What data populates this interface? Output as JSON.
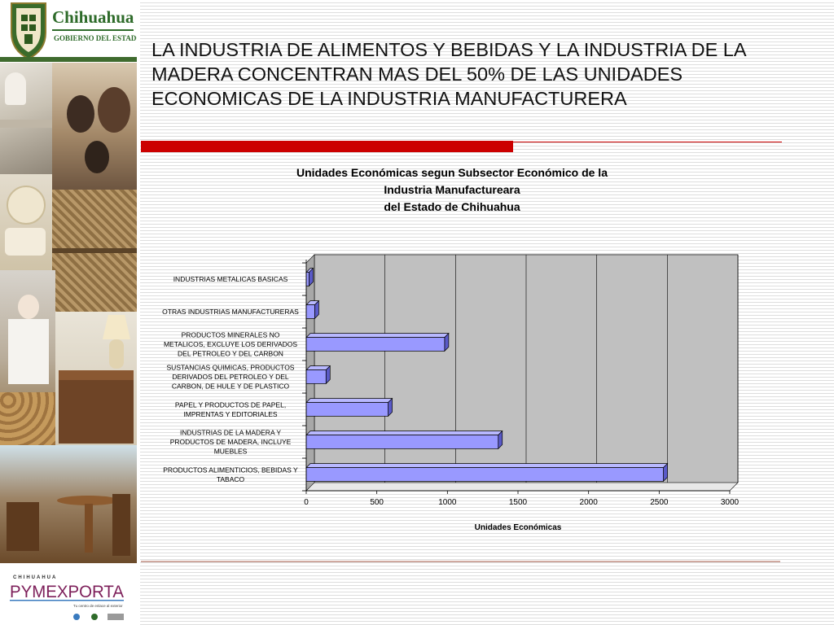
{
  "header": {
    "logo_word": "Chihuahua",
    "logo_sub": "GOBIERNO DEL ESTADO"
  },
  "slide_title": "LA INDUSTRIA DE ALIMENTOS Y BEBIDAS Y LA INDUSTRIA DE LA MADERA CONCENTRAN MAS DEL 50% DE LAS UNIDADES ECONOMICAS DE LA INDUSTRIA MANUFACTURERA",
  "footer_logo": {
    "top_word": "CHIHUAHUA",
    "brand": "PYMEXPORTA",
    "tagline": "Tu centro de enlace al exterior"
  },
  "colors": {
    "accent_red": "#cc0000",
    "bar_fill": "#9999ff",
    "plot_bg": "#c0c0c0"
  },
  "chart_data": {
    "type": "bar",
    "orientation": "horizontal",
    "title_lines": [
      "Unidades Económicas segun Subsector Económico de la",
      "Industria Manufactureara",
      "del Estado de Chihuahua"
    ],
    "xlabel": "Unidades Económicas",
    "ylabel": "",
    "xlim": [
      0,
      3000
    ],
    "x_ticks": [
      "0",
      "500",
      "1000",
      "1500",
      "2000",
      "2500",
      "3000"
    ],
    "grid": true,
    "legend": "none",
    "categories": [
      [
        "INDUSTRIAS METALICAS BASICAS"
      ],
      [
        "OTRAS INDUSTRIAS MANUFACTURERAS"
      ],
      [
        "PRODUCTOS MINERALES NO",
        "METALICOS, EXCLUYE LOS DERIVADOS",
        "DEL PETROLEO Y DEL CARBON"
      ],
      [
        "SUSTANCIAS QUIMICAS, PRODUCTOS",
        "DERIVADOS DEL PETROLEO Y DEL",
        "CARBON, DE HULE Y DE PLASTICO"
      ],
      [
        "PAPEL Y PRODUCTOS DE PAPEL,",
        "IMPRENTAS Y EDITORIALES"
      ],
      [
        "INDUSTRIAS DE LA MADERA Y",
        "PRODUCTOS DE MADERA, INCLUYE",
        "MUEBLES"
      ],
      [
        "PRODUCTOS ALIMENTICIOS, BEBIDAS Y",
        "TABACO"
      ]
    ],
    "values": [
      20,
      60,
      980,
      140,
      580,
      1360,
      2530
    ]
  }
}
